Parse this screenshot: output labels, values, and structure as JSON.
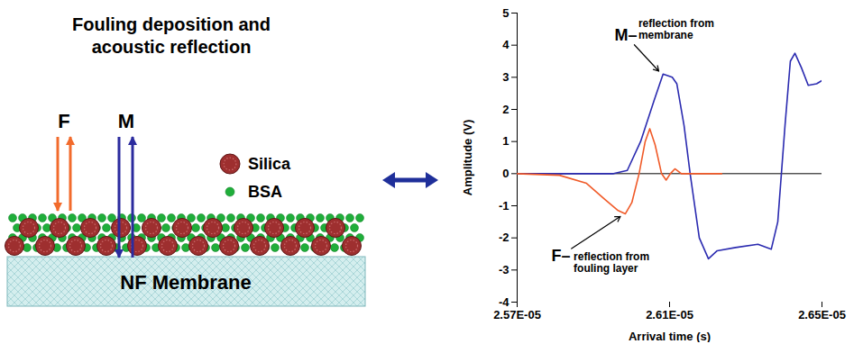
{
  "chart_data": {
    "type": "line",
    "xlabel": "Arrival time (s)",
    "ylabel": "Amplitude (V)",
    "xlim": [
      2.57e-05,
      2.65e-05
    ],
    "xticks": [
      {
        "value": 2.57e-05,
        "label": "2.57E-05"
      },
      {
        "value": 2.61e-05,
        "label": "2.61E-05"
      },
      {
        "value": 2.65e-05,
        "label": "2.65E-05"
      }
    ],
    "ylim": [
      -4,
      5
    ],
    "yticks": [
      -4,
      -3,
      -2,
      -1,
      0,
      1,
      2,
      3,
      4,
      5
    ],
    "grid": false,
    "series": [
      {
        "name": "M",
        "color": "#2b2bb0",
        "x": [
          2.57e-05,
          2.5953e-05,
          2.5989e-05,
          2.6024e-05,
          2.606e-05,
          2.6083e-05,
          2.6107e-05,
          2.6119e-05,
          2.6138e-05,
          2.6154e-05,
          2.6178e-05,
          2.6202e-05,
          2.6225e-05,
          2.6273e-05,
          2.6332e-05,
          2.6367e-05,
          2.6384e-05,
          2.6403e-05,
          2.6417e-05,
          2.6429e-05,
          2.6446e-05,
          2.6464e-05,
          2.6486e-05,
          2.65e-05
        ],
        "values": [
          0,
          0,
          0.1,
          1.0,
          2.3,
          3.1,
          3.0,
          2.8,
          1.5,
          0,
          -2.0,
          -2.65,
          -2.4,
          -2.3,
          -2.2,
          -2.35,
          -1.5,
          1.5,
          3.5,
          3.75,
          3.3,
          2.75,
          2.8,
          2.9
        ]
      },
      {
        "name": "F",
        "color": "#f05a28",
        "x": [
          2.57e-05,
          2.5811e-05,
          2.5882e-05,
          2.593e-05,
          2.5965e-05,
          2.5984e-05,
          2.6001e-05,
          2.602e-05,
          2.6036e-05,
          2.6048e-05,
          2.6062e-05,
          2.6079e-05,
          2.6091e-05,
          2.6102e-05,
          2.6114e-05,
          2.6131e-05,
          2.6237e-05
        ],
        "values": [
          0,
          -0.05,
          -0.3,
          -0.8,
          -1.15,
          -1.25,
          -0.9,
          0,
          1.0,
          1.4,
          0.9,
          0,
          -0.2,
          0,
          0.15,
          0,
          0
        ]
      }
    ],
    "annotations": [
      {
        "label": "M–",
        "text": "reflection from membrane",
        "xy": [
          2.6075e-05,
          3.15
        ],
        "xytext": [
          2.5985e-05,
          4.3
        ]
      },
      {
        "label": "F–",
        "text": "reflection from fouling layer",
        "xy": [
          2.5975e-05,
          -1.3
        ],
        "xytext": [
          2.5815e-05,
          -2.55
        ]
      }
    ]
  },
  "diagram": {
    "title": [
      "Fouling deposition and",
      "acoustic reflection"
    ],
    "beams": [
      {
        "label": "F",
        "color": "#f26b2c"
      },
      {
        "label": "M",
        "color": "#2b2b9e"
      }
    ],
    "legend": [
      {
        "label": "Silica",
        "color": "#9e2f2f"
      },
      {
        "label": "BSA",
        "color": "#1fae3a"
      }
    ],
    "membrane": "NF Membrane"
  }
}
